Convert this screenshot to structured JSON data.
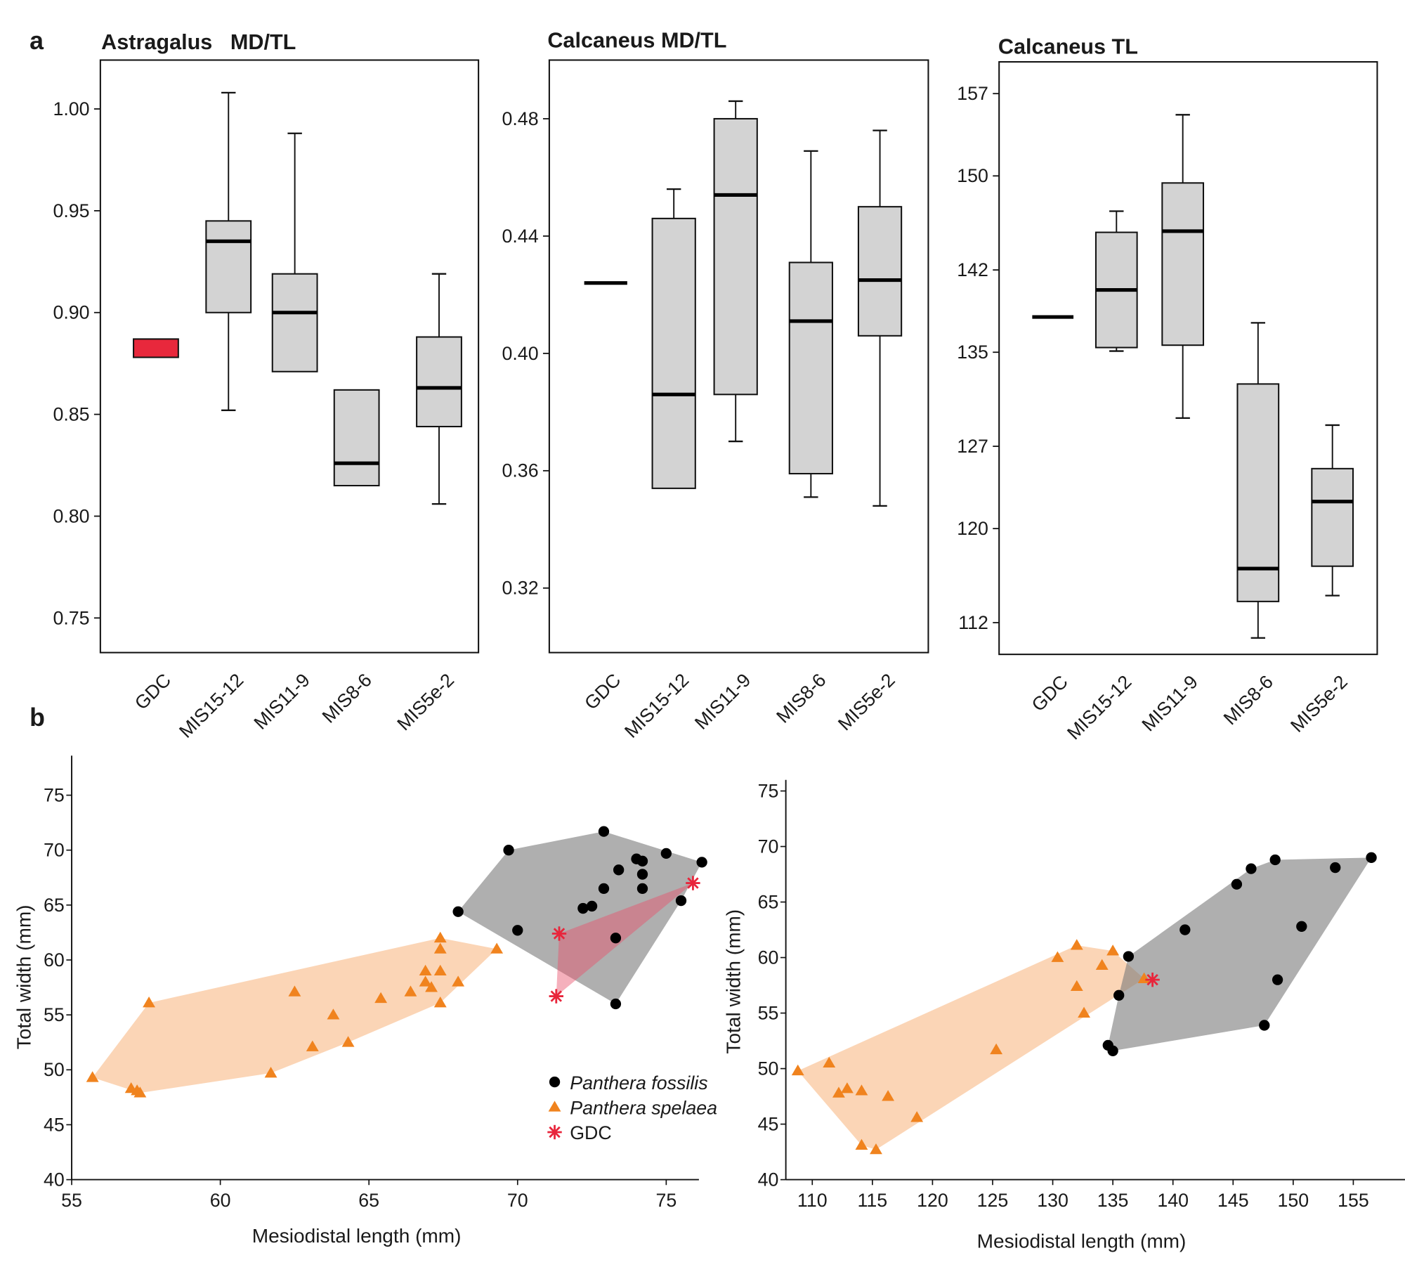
{
  "panel_labels": {
    "a": "a",
    "b": "b"
  },
  "chart_data": [
    {
      "type": "box",
      "title": "Astragalus   MD/TL",
      "ylim": [
        0.733,
        1.024
      ],
      "yticks": [
        "1.00",
        "0.95",
        "0.90",
        "0.85",
        "0.80",
        "0.75"
      ],
      "categories": [
        "GDC",
        "MIS15-12",
        "MIS11-9",
        "MIS8-6",
        "MIS5e-2"
      ],
      "boxes": [
        {
          "q1": 0.878,
          "q3": 0.887,
          "median": null,
          "whisker_low": null,
          "whisker_high": null,
          "color": "#e8283c"
        },
        {
          "whisker_low": 0.852,
          "q1": 0.9,
          "median": 0.935,
          "q3": 0.945,
          "whisker_high": 1.008,
          "color": "#d3d3d3"
        },
        {
          "whisker_low": null,
          "q1": 0.871,
          "median": 0.9,
          "q3": 0.919,
          "whisker_high": 0.988,
          "color": "#d3d3d3"
        },
        {
          "whisker_low": null,
          "q1": 0.815,
          "median": 0.826,
          "q3": 0.862,
          "whisker_high": null,
          "color": "#d3d3d3"
        },
        {
          "whisker_low": 0.806,
          "q1": 0.844,
          "median": 0.863,
          "q3": 0.888,
          "whisker_high": 0.919,
          "color": "#d3d3d3"
        }
      ]
    },
    {
      "type": "box",
      "title": "Calcaneus MD/TL",
      "ylim": [
        0.298,
        0.5
      ],
      "yticks": [
        "0.48",
        "0.44",
        "0.40",
        "0.36",
        "0.32"
      ],
      "categories": [
        "GDC",
        "MIS15-12",
        "MIS11-9",
        "MIS8-6",
        "MIS5e-2"
      ],
      "boxes": [
        {
          "median": 0.424,
          "q1": null,
          "q3": null,
          "whisker_low": null,
          "whisker_high": null,
          "color": "#d3d3d3"
        },
        {
          "whisker_low": null,
          "q1": 0.354,
          "median": 0.386,
          "q3": 0.446,
          "whisker_high": 0.456,
          "color": "#d3d3d3"
        },
        {
          "whisker_low": 0.37,
          "q1": 0.386,
          "median": 0.454,
          "q3": 0.48,
          "whisker_high": 0.486,
          "color": "#d3d3d3"
        },
        {
          "whisker_low": 0.351,
          "q1": 0.359,
          "median": 0.411,
          "q3": 0.431,
          "whisker_high": 0.469,
          "color": "#d3d3d3"
        },
        {
          "whisker_low": 0.348,
          "q1": 0.406,
          "median": 0.425,
          "q3": 0.45,
          "whisker_high": 0.476,
          "color": "#d3d3d3"
        }
      ]
    },
    {
      "type": "box",
      "title": "Calcaneus TL",
      "ylim": [
        109.3,
        159.7
      ],
      "yticks": [
        "157",
        "150",
        "142",
        "135",
        "127",
        "120",
        "112"
      ],
      "categories": [
        "GDC",
        "MIS15-12",
        "MIS11-9",
        "MIS8-6",
        "MIS5e-2"
      ],
      "boxes": [
        {
          "median": 138.0,
          "q1": null,
          "q3": null,
          "whisker_low": null,
          "whisker_high": null,
          "color": "#d3d3d3"
        },
        {
          "whisker_low": 135.1,
          "q1": 135.4,
          "median": 140.3,
          "q3": 145.2,
          "whisker_high": 147.0,
          "color": "#d3d3d3"
        },
        {
          "whisker_low": 129.4,
          "q1": 135.6,
          "median": 145.3,
          "q3": 149.4,
          "whisker_high": 155.2,
          "color": "#d3d3d3"
        },
        {
          "whisker_low": 110.7,
          "q1": 113.8,
          "median": 116.6,
          "q3": 132.3,
          "whisker_high": 137.5,
          "color": "#d3d3d3"
        },
        {
          "whisker_low": 114.3,
          "q1": 116.8,
          "median": 122.3,
          "q3": 125.1,
          "whisker_high": 128.8,
          "color": "#d3d3d3"
        }
      ]
    },
    {
      "type": "scatter",
      "xlabel": "Mesiodistal length (mm)",
      "ylabel": "Total width (mm)",
      "xlim": [
        55,
        76.1
      ],
      "ylim": [
        40,
        78.6
      ],
      "xticks": [
        55,
        60,
        65,
        70,
        75
      ],
      "yticks": [
        40,
        45,
        50,
        55,
        60,
        65,
        70,
        75
      ],
      "legend": "right-bottom",
      "series": [
        {
          "name": "Panthera fossilis",
          "marker": "circle",
          "color": "#000000",
          "hull_color": "#7a7a7a",
          "points": [
            [
              68.0,
              64.4
            ],
            [
              69.7,
              70.0
            ],
            [
              70.0,
              62.7
            ],
            [
              72.9,
              71.7
            ],
            [
              72.9,
              66.5
            ],
            [
              72.2,
              64.7
            ],
            [
              72.5,
              64.9
            ],
            [
              73.4,
              68.2
            ],
            [
              74.0,
              69.2
            ],
            [
              74.2,
              69.0
            ],
            [
              74.2,
              67.8
            ],
            [
              74.2,
              66.5
            ],
            [
              75.0,
              69.7
            ],
            [
              76.2,
              68.9
            ],
            [
              75.5,
              65.4
            ],
            [
              73.3,
              62.0
            ],
            [
              73.3,
              56.0
            ]
          ]
        },
        {
          "name": "Panthera spelaea",
          "marker": "triangle",
          "color": "#f0831e",
          "hull_color": "#f9c79d",
          "points": [
            [
              55.7,
              49.3
            ],
            [
              57.0,
              48.3
            ],
            [
              57.2,
              48.1
            ],
            [
              57.3,
              47.9
            ],
            [
              57.6,
              56.1
            ],
            [
              61.7,
              49.7
            ],
            [
              62.5,
              57.1
            ],
            [
              63.1,
              52.1
            ],
            [
              63.8,
              55.0
            ],
            [
              64.3,
              52.5
            ],
            [
              65.4,
              56.5
            ],
            [
              66.4,
              57.1
            ],
            [
              66.9,
              59.0
            ],
            [
              66.9,
              58.0
            ],
            [
              67.1,
              57.5
            ],
            [
              67.4,
              62.0
            ],
            [
              67.4,
              61.0
            ],
            [
              67.4,
              59.0
            ],
            [
              67.4,
              56.1
            ],
            [
              68.0,
              58.0
            ],
            [
              69.3,
              61.0
            ]
          ]
        },
        {
          "name": "GDC",
          "marker": "asterisk",
          "color": "#e8253b",
          "hull_color": "#e8506a",
          "points": [
            [
              71.4,
              62.4
            ],
            [
              71.3,
              56.7
            ],
            [
              75.9,
              67.0
            ]
          ]
        }
      ]
    },
    {
      "type": "scatter",
      "xlabel": "Mesiodistal length (mm)",
      "ylabel": "Total width (mm)",
      "xlim": [
        107.8,
        159.3
      ],
      "ylim": [
        40,
        76.0
      ],
      "xticks": [
        110,
        115,
        120,
        125,
        130,
        135,
        140,
        145,
        150,
        155
      ],
      "yticks": [
        40,
        45,
        50,
        55,
        60,
        65,
        70,
        75
      ],
      "series": [
        {
          "name": "Panthera fossilis",
          "marker": "circle",
          "color": "#000000",
          "hull_color": "#7a7a7a",
          "points": [
            [
              136.3,
              60.1
            ],
            [
              135.5,
              56.6
            ],
            [
              134.6,
              52.1
            ],
            [
              135.0,
              51.6
            ],
            [
              141.0,
              62.5
            ],
            [
              145.3,
              66.6
            ],
            [
              146.5,
              68.0
            ],
            [
              148.5,
              68.8
            ],
            [
              153.5,
              68.1
            ],
            [
              156.5,
              69.0
            ],
            [
              150.7,
              62.8
            ],
            [
              148.7,
              58.0
            ],
            [
              147.6,
              53.9
            ]
          ]
        },
        {
          "name": "Panthera spelaea",
          "marker": "triangle",
          "color": "#f0831e",
          "hull_color": "#f9c79d",
          "points": [
            [
              108.8,
              49.8
            ],
            [
              111.4,
              50.5
            ],
            [
              112.2,
              47.8
            ],
            [
              112.9,
              48.2
            ],
            [
              114.1,
              48.0
            ],
            [
              116.3,
              47.5
            ],
            [
              118.7,
              45.6
            ],
            [
              114.1,
              43.1
            ],
            [
              115.3,
              42.7
            ],
            [
              125.3,
              51.7
            ],
            [
              130.4,
              60.0
            ],
            [
              132.0,
              61.1
            ],
            [
              135.0,
              60.6
            ],
            [
              134.1,
              59.3
            ],
            [
              132.0,
              57.4
            ],
            [
              132.6,
              55.0
            ],
            [
              137.6,
              58.1
            ]
          ]
        },
        {
          "name": "GDC",
          "marker": "asterisk",
          "color": "#e8253b",
          "hull_color": "#e8506a",
          "points": [
            [
              138.3,
              58.0
            ]
          ]
        }
      ]
    }
  ]
}
